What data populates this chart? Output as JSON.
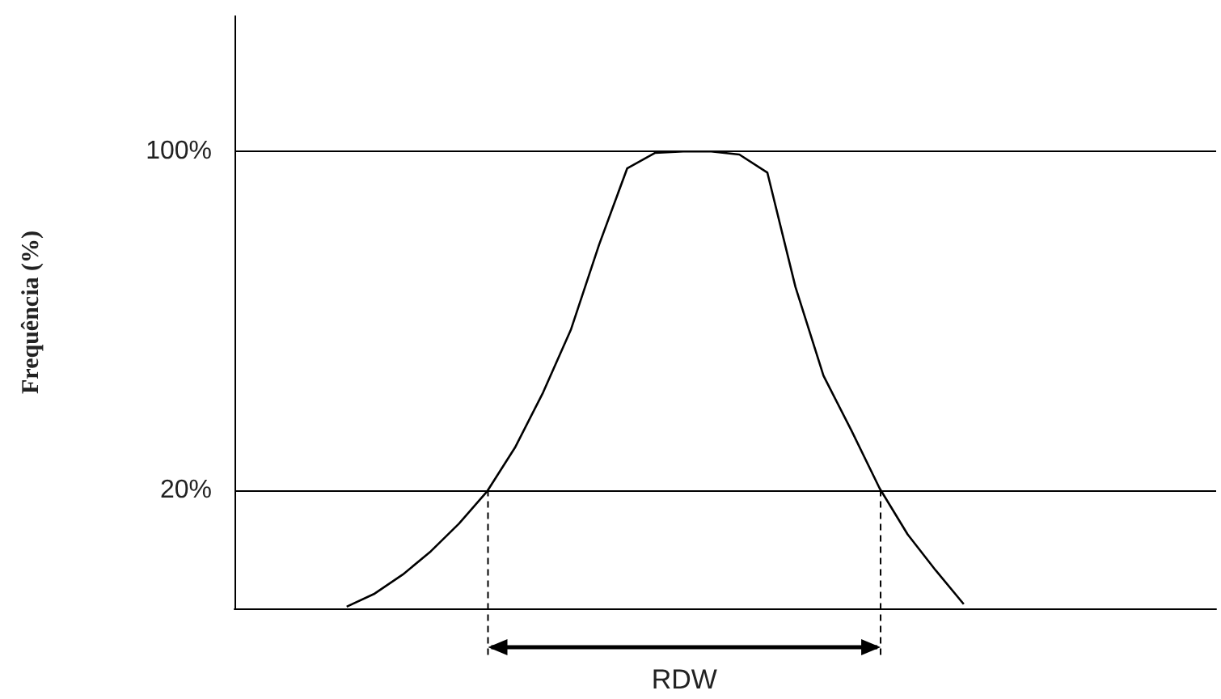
{
  "chart_data": {
    "type": "line",
    "ylabel": "Frequência (%)",
    "annotations": [
      "RDW"
    ],
    "categories": [
      null,
      null,
      null,
      null,
      null,
      null,
      null,
      null,
      null,
      null,
      null,
      null,
      null,
      null,
      null,
      null,
      null,
      null,
      null,
      null,
      null,
      null,
      null,
      null,
      null,
      null,
      null,
      null,
      null,
      null,
      null,
      null,
      null,
      null,
      null,
      null
    ],
    "series": [
      {
        "color": "#000000",
        "values": [
          null,
          null,
          null,
          null,
          -7.6,
          -4.5,
          0,
          5.5,
          12,
          19.6,
          30,
          43,
          58,
          78,
          96,
          99.7,
          100,
          100,
          99.3,
          95,
          68,
          47,
          34,
          20.4,
          9.5,
          1,
          -7,
          null,
          null,
          null,
          null,
          null,
          null,
          null,
          null,
          null
        ]
      }
    ],
    "ylim": [
      -8,
      132
    ],
    "yticks": [
      {
        "value": 20,
        "label": "20%"
      },
      {
        "value": 100,
        "label": "100%"
      }
    ],
    "tick_labels": "y",
    "grid": false,
    "marker": "none",
    "line_style": "solid",
    "ref_lines": [
      {
        "axis": "y",
        "value": 100,
        "color": "#000000",
        "line_style": "solid"
      },
      {
        "axis": "y",
        "value": 20,
        "color": "#000000",
        "line_style": "solid"
      }
    ]
  }
}
